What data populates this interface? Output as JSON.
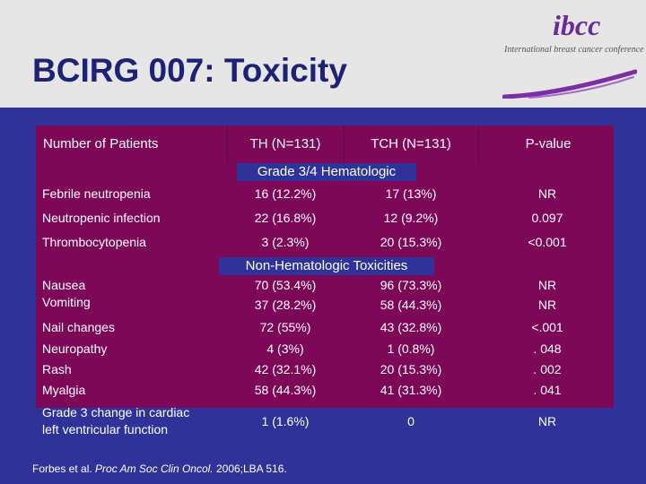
{
  "slide": {
    "title": "BCIRG 007: Toxicity",
    "logo": {
      "mark": "ibcc",
      "text": "International breast cancer conference"
    }
  },
  "table": {
    "headers": [
      "Number of Patients",
      "TH (N=131)",
      "TCH (N=131)",
      "P-value"
    ],
    "sections": [
      {
        "title": "Grade 3/4 Hematologic",
        "rows": [
          {
            "label": [
              "Febrile neutropenia"
            ],
            "th": [
              "16 (12.2%)"
            ],
            "tch": [
              "17 (13%)"
            ],
            "p": [
              "NR"
            ]
          },
          {
            "label": [
              "Neutropenic infection"
            ],
            "th": [
              "22 (16.8%)"
            ],
            "tch": [
              "12 (9.2%)"
            ],
            "p": [
              "0.097"
            ]
          },
          {
            "label": [
              "Thrombocytopenia"
            ],
            "th": [
              "3 (2.3%)"
            ],
            "tch": [
              "20 (15.3%)"
            ],
            "p": [
              "<0.001"
            ]
          }
        ]
      },
      {
        "title": "Non-Hematologic Toxicities",
        "rows": [
          {
            "label": [
              "Nausea",
              "Vomiting"
            ],
            "th": [
              "70 (53.4%)",
              "37 (28.2%)"
            ],
            "tch": [
              "96 (73.3%)",
              "58 (44.3%)"
            ],
            "p": [
              "NR",
              "NR"
            ]
          },
          {
            "label": [
              "Nail changes"
            ],
            "th": [
              "72 (55%)"
            ],
            "tch": [
              "43 (32.8%)"
            ],
            "p": [
              "<.001"
            ]
          },
          {
            "label": [
              "Neuropathy",
              "Rash",
              "Myalgia"
            ],
            "th": [
              "4 (3%)",
              "42 (32.1%)",
              "58 (44.3%)"
            ],
            "tch": [
              "1 (0.8%)",
              "20 (15.3%)",
              "41 (31.3%)"
            ],
            "p": [
              ". 048",
              ". 002",
              ". 041"
            ]
          },
          {
            "label": [
              "Grade 3 change in cardiac",
              "left ventricular function"
            ],
            "th": [
              "1 (1.6%)"
            ],
            "tch": [
              "0"
            ],
            "p": [
              "NR"
            ]
          }
        ]
      }
    ]
  },
  "citation": {
    "prefix": "Forbes et al. ",
    "journal": "Proc Am Soc Clin Oncol.",
    "suffix": " 2006;LBA 516."
  },
  "colors": {
    "background": "#2f3399",
    "header_band": "#e6e6e6",
    "title": "#1d2277",
    "table_fill": "#7d0858",
    "text": "#ffffff"
  }
}
